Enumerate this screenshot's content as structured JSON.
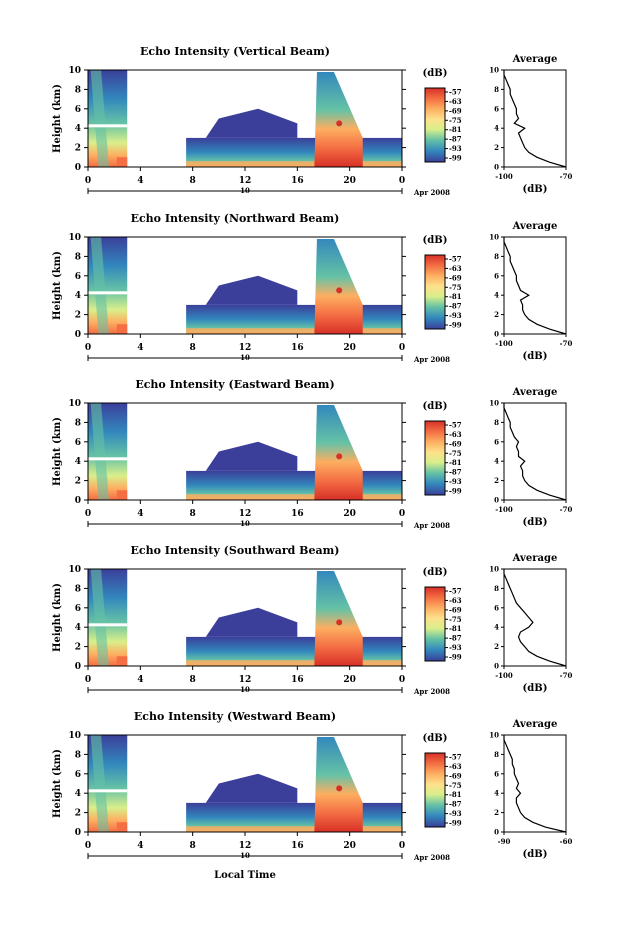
{
  "figure": {
    "xlabel_bottom": "Local Time",
    "date_label": "Apr 2008",
    "day_label": "10"
  },
  "colorbar": {
    "unit": "(dB)",
    "ticks": [
      "-57",
      "-63",
      "-69",
      "-75",
      "-81",
      "-87",
      "-93",
      "-99"
    ],
    "colors": [
      "#d73027",
      "#f46d43",
      "#fdae61",
      "#fee08b",
      "#d9ef8b",
      "#66c2a5",
      "#3288bd",
      "#5e4fa2"
    ]
  },
  "chart_data": [
    {
      "type": "heatmap",
      "title": "Echo Intensity (Vertical Beam)",
      "ylabel": "Height (km)",
      "ylim": [
        0,
        10
      ],
      "xlim": [
        0,
        24
      ],
      "xticks": [
        "0",
        "4",
        "8",
        "12",
        "16",
        "20",
        "0"
      ],
      "yticks": [
        "0",
        "2",
        "4",
        "6",
        "8",
        "10"
      ],
      "average": {
        "title": "Average",
        "xlabel": "(dB)",
        "xticks": [
          "-100",
          "-70"
        ],
        "xlim": [
          -100,
          -70
        ],
        "height": [
          0,
          0.5,
          1,
          1.5,
          2,
          2.5,
          3,
          3.5,
          4,
          4.5,
          5,
          5.5,
          6,
          6.5,
          7,
          7.5,
          8,
          8.5,
          9,
          9.5,
          10
        ],
        "db": [
          -70,
          -78,
          -84,
          -88,
          -90,
          -91,
          -92,
          -93,
          -90,
          -95,
          -93,
          -94,
          -94,
          -95,
          -96,
          -97,
          -97,
          -98,
          -99,
          -100,
          -100
        ]
      }
    },
    {
      "type": "heatmap",
      "title": "Echo Intensity (Northward Beam)",
      "ylabel": "Height (km)",
      "ylim": [
        0,
        10
      ],
      "xlim": [
        0,
        24
      ],
      "xticks": [
        "0",
        "4",
        "8",
        "12",
        "16",
        "20",
        "0"
      ],
      "yticks": [
        "0",
        "2",
        "4",
        "6",
        "8",
        "10"
      ],
      "average": {
        "title": "Average",
        "xlabel": "(dB)",
        "xticks": [
          "-100",
          "-70"
        ],
        "xlim": [
          -100,
          -70
        ],
        "height": [
          0,
          0.5,
          1,
          1.5,
          2,
          2.5,
          3,
          3.5,
          4,
          4.5,
          5,
          5.5,
          6,
          6.5,
          7,
          7.5,
          8,
          8.5,
          9,
          9.5,
          10
        ],
        "db": [
          -70,
          -78,
          -84,
          -88,
          -90,
          -91,
          -91,
          -92,
          -88,
          -92,
          -93,
          -94,
          -94,
          -95,
          -96,
          -97,
          -97,
          -98,
          -99,
          -100,
          -100
        ]
      }
    },
    {
      "type": "heatmap",
      "title": "Echo Intensity (Eastward Beam)",
      "ylabel": "Height (km)",
      "ylim": [
        0,
        10
      ],
      "xlim": [
        0,
        24
      ],
      "xticks": [
        "0",
        "4",
        "8",
        "12",
        "16",
        "20",
        "0"
      ],
      "yticks": [
        "0",
        "2",
        "4",
        "6",
        "8",
        "10"
      ],
      "average": {
        "title": "Average",
        "xlabel": "(dB)",
        "xticks": [
          "-100",
          "-70"
        ],
        "xlim": [
          -100,
          -70
        ],
        "height": [
          0,
          0.5,
          1,
          1.5,
          2,
          2.5,
          3,
          3.5,
          4,
          4.5,
          5,
          5.5,
          6,
          6.5,
          7,
          7.5,
          8,
          8.5,
          9,
          9.5,
          10
        ],
        "db": [
          -70,
          -78,
          -84,
          -88,
          -90,
          -91,
          -91,
          -92,
          -90,
          -93,
          -93,
          -94,
          -93,
          -95,
          -96,
          -97,
          -97,
          -98,
          -99,
          -100,
          -100
        ]
      }
    },
    {
      "type": "heatmap",
      "title": "Echo Intensity (Southward Beam)",
      "ylabel": "Height (km)",
      "ylim": [
        0,
        10
      ],
      "xlim": [
        0,
        24
      ],
      "xticks": [
        "0",
        "4",
        "8",
        "12",
        "16",
        "20",
        "0"
      ],
      "yticks": [
        "0",
        "2",
        "4",
        "6",
        "8",
        "10"
      ],
      "average": {
        "title": "Average",
        "xlabel": "(dB)",
        "xticks": [
          "-100",
          "-70"
        ],
        "xlim": [
          -100,
          -70
        ],
        "height": [
          0,
          0.5,
          1,
          1.5,
          2,
          2.5,
          3,
          3.5,
          4,
          4.5,
          5,
          5.5,
          6,
          6.5,
          7,
          7.5,
          8,
          8.5,
          9,
          9.5,
          10
        ],
        "db": [
          -70,
          -78,
          -84,
          -88,
          -90,
          -92,
          -93,
          -92,
          -88,
          -86,
          -88,
          -90,
          -92,
          -94,
          -95,
          -96,
          -97,
          -98,
          -99,
          -100,
          -100
        ]
      }
    },
    {
      "type": "heatmap",
      "title": "Echo Intensity (Westward Beam)",
      "ylabel": "Height (km)",
      "ylim": [
        0,
        10
      ],
      "xlim": [
        0,
        24
      ],
      "xticks": [
        "0",
        "4",
        "8",
        "12",
        "16",
        "20",
        "0"
      ],
      "yticks": [
        "0",
        "2",
        "4",
        "6",
        "8",
        "10"
      ],
      "average": {
        "title": "Average",
        "xlabel": "(dB)",
        "xticks": [
          "-90",
          "-60"
        ],
        "xlim": [
          -90,
          -60
        ],
        "height": [
          0,
          0.5,
          1,
          1.5,
          2,
          2.5,
          3,
          3.5,
          4,
          4.5,
          5,
          5.5,
          6,
          6.5,
          7,
          7.5,
          8,
          8.5,
          9,
          9.5,
          10
        ],
        "db": [
          -60,
          -70,
          -76,
          -80,
          -82,
          -83,
          -84,
          -84,
          -82,
          -84,
          -83,
          -84,
          -85,
          -85,
          -86,
          -86,
          -87,
          -88,
          -89,
          -90,
          -90
        ]
      }
    }
  ]
}
